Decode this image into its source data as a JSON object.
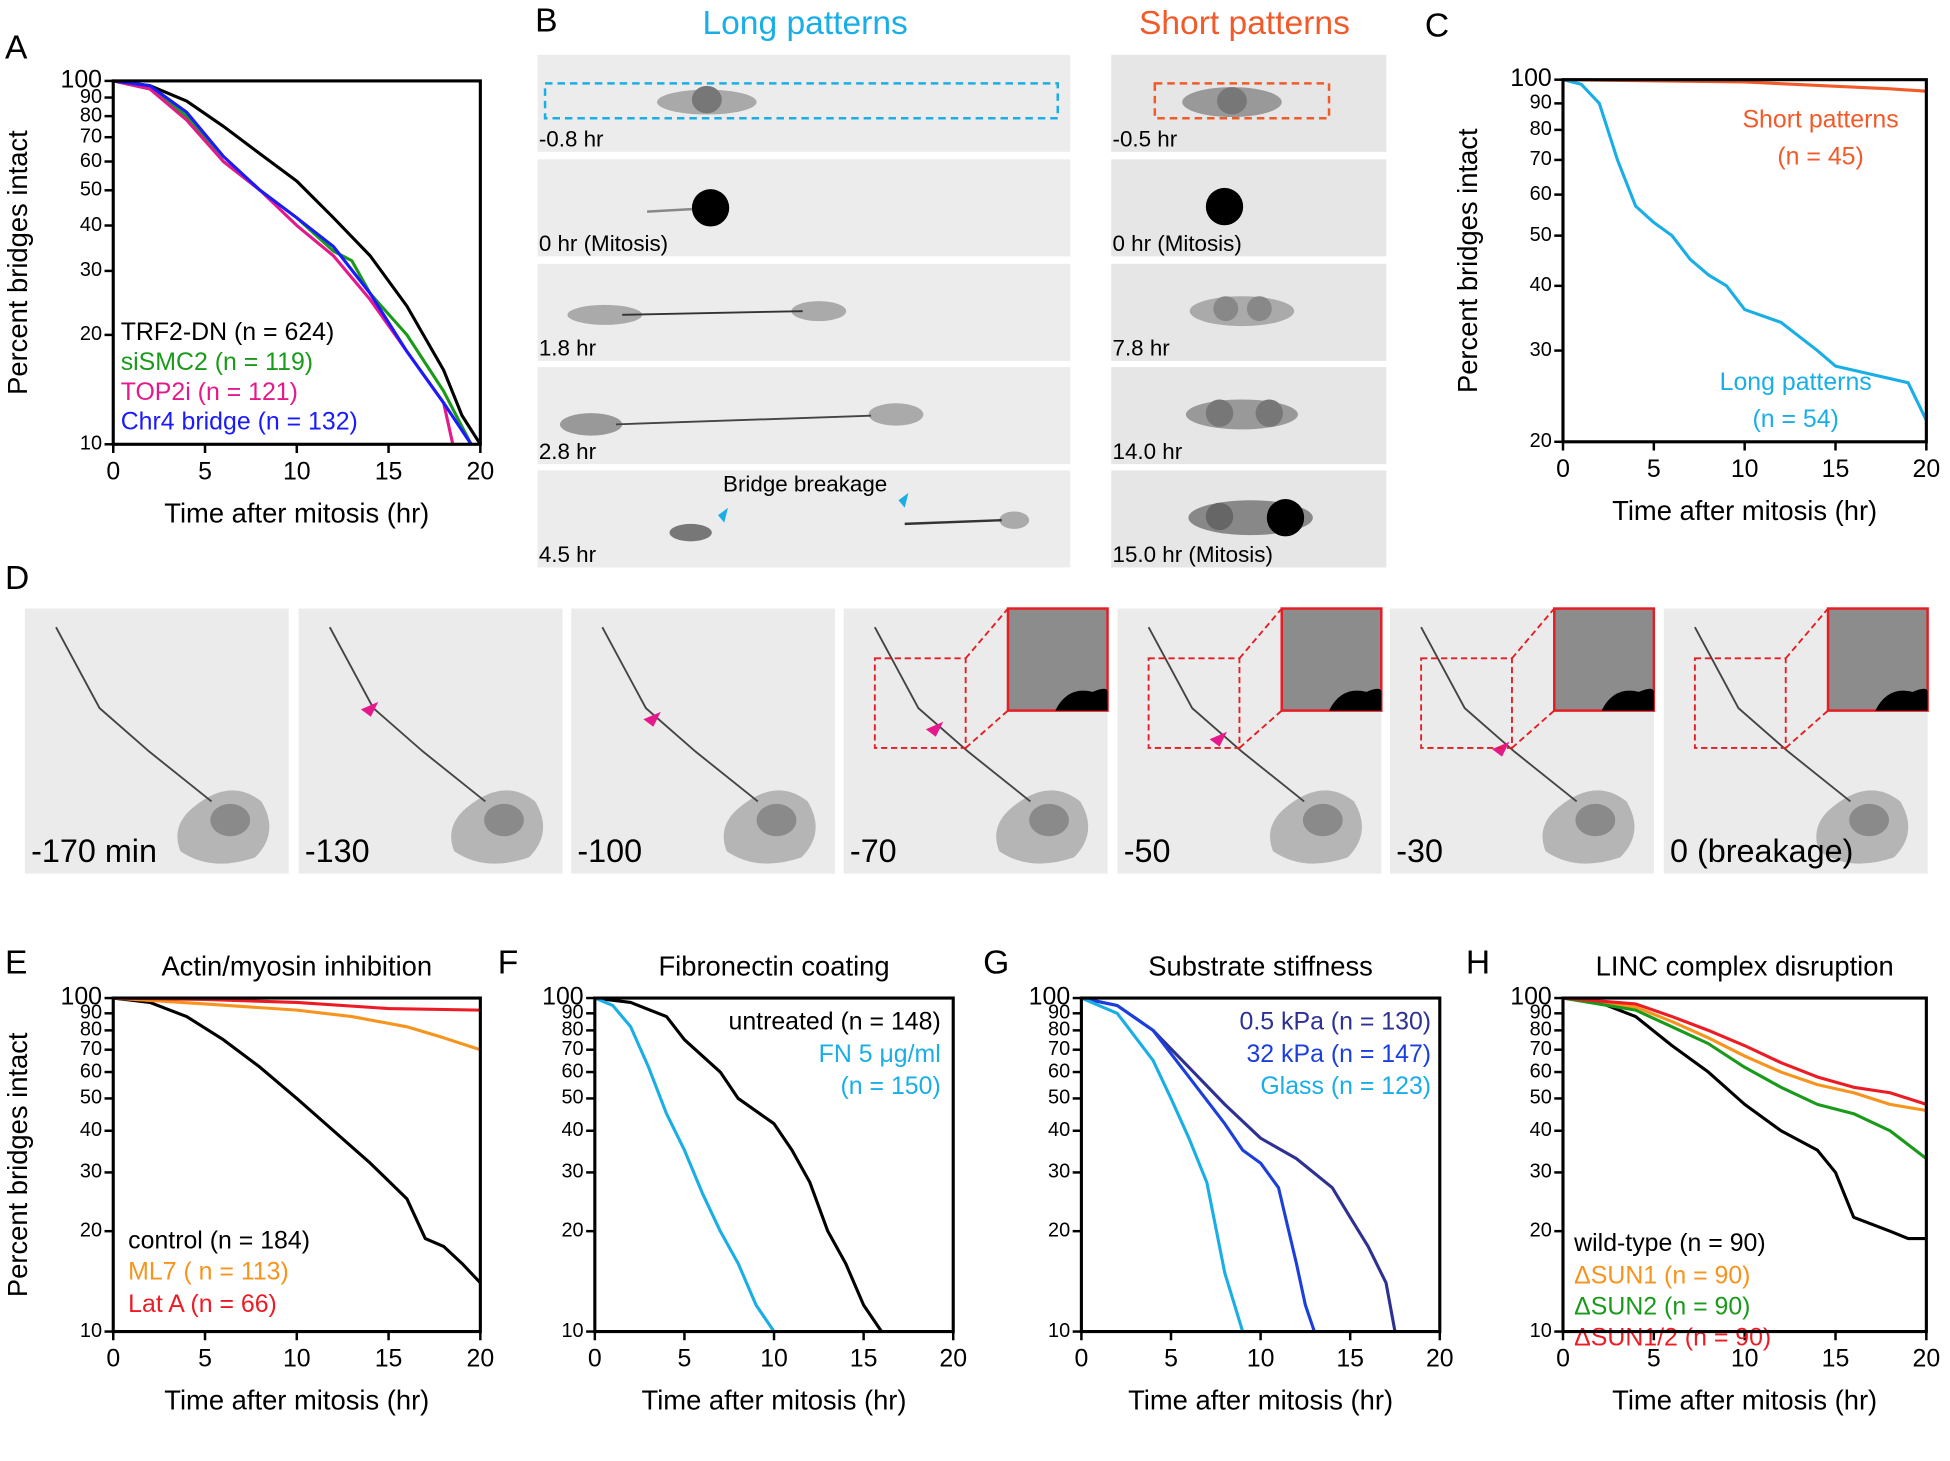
{
  "chart_data": [
    {
      "type": "line",
      "label": "A",
      "xlabel": "Time after mitosis (hr)",
      "ylabel": "Percent bridges intact",
      "xlim": [
        0,
        20
      ],
      "ylim": [
        10,
        100
      ],
      "yscale": "log",
      "xticks": [
        0,
        5,
        10,
        15,
        20
      ],
      "yticks": [
        10,
        20,
        30,
        40,
        50,
        60,
        70,
        80,
        90,
        100
      ],
      "series": [
        {
          "name": [
            "TRF2-DN (n = 624)"
          ],
          "color": "#000000",
          "x": [
            0,
            2,
            4,
            6,
            8,
            10,
            12,
            14,
            16,
            18,
            19,
            20
          ],
          "values": [
            100,
            97,
            88,
            75,
            63,
            53,
            42,
            33,
            24,
            16,
            12,
            10
          ]
        },
        {
          "name": [
            "siSMC2 (n = 119)"
          ],
          "color": "#1a9a1a",
          "x": [
            0,
            2,
            4,
            6,
            8,
            10,
            12,
            13,
            14,
            16,
            18,
            19.5
          ],
          "values": [
            100,
            95,
            80,
            60,
            50,
            42,
            34,
            32,
            26,
            20,
            14,
            10
          ]
        },
        {
          "name": [
            "TOP2i (n = 121)"
          ],
          "color": "#e6198c",
          "x": [
            0,
            2,
            4,
            6,
            8,
            10,
            12,
            14,
            16,
            18,
            18.5
          ],
          "values": [
            100,
            95,
            78,
            60,
            50,
            40,
            33,
            25,
            18,
            13,
            10
          ]
        },
        {
          "name": [
            "Chr4 bridge (n = 132)"
          ],
          "color": "#1a1aff",
          "x": [
            0,
            2,
            4,
            6,
            8,
            10,
            12,
            14,
            16,
            18,
            19.5
          ],
          "values": [
            100,
            97,
            82,
            62,
            50,
            42,
            35,
            26,
            18,
            13,
            10
          ]
        }
      ]
    },
    {
      "type": "line",
      "label": "C",
      "xlabel": "Time after mitosis (hr)",
      "ylabel": "Percent bridges intact",
      "xlim": [
        0,
        20
      ],
      "ylim": [
        20,
        100
      ],
      "yscale": "log",
      "xticks": [
        0,
        5,
        10,
        15,
        20
      ],
      "yticks": [
        20,
        30,
        40,
        50,
        60,
        70,
        80,
        90,
        100
      ],
      "series": [
        {
          "name": [
            "Short patterns",
            "(n = 45)"
          ],
          "color": "#f15a29",
          "x": [
            0,
            10,
            18,
            20
          ],
          "values": [
            100,
            99,
            96,
            95
          ]
        },
        {
          "name": [
            "Long patterns",
            "(n = 54)"
          ],
          "color": "#1aaee6",
          "x": [
            0,
            1,
            2,
            3,
            4,
            5,
            6,
            7,
            8,
            9,
            10,
            12,
            14,
            15,
            19,
            20
          ],
          "values": [
            100,
            98,
            90,
            70,
            57,
            53,
            50,
            45,
            42,
            40,
            36,
            34,
            30,
            28,
            26,
            22
          ]
        }
      ]
    },
    {
      "type": "line",
      "label": "E",
      "title": "Actin/myosin inhibition",
      "xlabel": "Time after mitosis (hr)",
      "ylabel": "Percent bridges intact",
      "xlim": [
        0,
        20
      ],
      "ylim": [
        10,
        100
      ],
      "yscale": "log",
      "xticks": [
        0,
        5,
        10,
        15,
        20
      ],
      "yticks": [
        10,
        20,
        30,
        40,
        50,
        60,
        70,
        80,
        90,
        100
      ],
      "series": [
        {
          "name": [
            "control (n = 184)"
          ],
          "color": "#000000",
          "x": [
            0,
            2,
            4,
            6,
            8,
            10,
            12,
            14,
            16,
            17,
            18,
            19,
            20
          ],
          "values": [
            100,
            97,
            88,
            75,
            62,
            50,
            40,
            32,
            25,
            19,
            18,
            16,
            14
          ]
        },
        {
          "name": [
            "ML7 ( n = 113)"
          ],
          "color": "#f7941d",
          "x": [
            0,
            5,
            10,
            13,
            16,
            18,
            20
          ],
          "values": [
            100,
            96,
            92,
            88,
            82,
            76,
            70
          ]
        },
        {
          "name": [
            "Lat A (n = 66)"
          ],
          "color": "#ed1c24",
          "x": [
            0,
            5,
            10,
            15,
            20
          ],
          "values": [
            100,
            99,
            97,
            93,
            92
          ]
        }
      ]
    },
    {
      "type": "line",
      "label": "F",
      "title": "Fibronectin coating",
      "xlabel": "Time after mitosis (hr)",
      "xlim": [
        0,
        20
      ],
      "ylim": [
        10,
        100
      ],
      "yscale": "log",
      "xticks": [
        0,
        5,
        10,
        15,
        20
      ],
      "yticks": [
        10,
        20,
        30,
        40,
        50,
        60,
        70,
        80,
        90,
        100
      ],
      "series": [
        {
          "name": [
            "untreated (n = 148)"
          ],
          "color": "#000000",
          "x": [
            0,
            2,
            4,
            5,
            7,
            8,
            10,
            11,
            12,
            13,
            14,
            15,
            16
          ],
          "values": [
            100,
            97,
            88,
            75,
            60,
            50,
            42,
            35,
            28,
            20,
            16,
            12,
            10
          ]
        },
        {
          "name": [
            "FN 5 μg/ml",
            "(n = 150)"
          ],
          "color": "#1aaee6",
          "x": [
            0,
            1,
            2,
            3,
            4,
            5,
            6,
            7,
            8,
            9,
            10
          ],
          "values": [
            100,
            95,
            82,
            62,
            45,
            35,
            26,
            20,
            16,
            12,
            10
          ]
        }
      ]
    },
    {
      "type": "line",
      "label": "G",
      "title": "Substrate stiffness",
      "xlabel": "Time after mitosis (hr)",
      "xlim": [
        0,
        20
      ],
      "ylim": [
        10,
        100
      ],
      "yscale": "log",
      "xticks": [
        0,
        5,
        10,
        15,
        20
      ],
      "yticks": [
        10,
        20,
        30,
        40,
        50,
        60,
        70,
        80,
        90,
        100
      ],
      "series": [
        {
          "name": [
            "0.5 kPa (n = 130)"
          ],
          "color": "#2e3192",
          "x": [
            0,
            2,
            4,
            6,
            8,
            10,
            12,
            14,
            15,
            16,
            17,
            17.5
          ],
          "values": [
            100,
            95,
            80,
            62,
            48,
            38,
            33,
            27,
            22,
            18,
            14,
            10
          ]
        },
        {
          "name": [
            "32 kPa (n = 147)"
          ],
          "color": "#1b3fdc",
          "x": [
            0,
            2,
            4,
            6,
            8,
            9,
            10,
            11,
            12,
            12.5,
            13
          ],
          "values": [
            100,
            95,
            80,
            58,
            42,
            35,
            32,
            27,
            16,
            12,
            10
          ]
        },
        {
          "name": [
            "Glass (n = 123)"
          ],
          "color": "#1aaee6",
          "x": [
            0,
            2,
            4,
            5,
            6,
            7,
            8,
            9
          ],
          "values": [
            100,
            90,
            65,
            50,
            38,
            28,
            15,
            10
          ]
        }
      ]
    },
    {
      "type": "line",
      "label": "H",
      "title": "LINC complex disruption",
      "xlabel": "Time after mitosis (hr)",
      "xlim": [
        0,
        20
      ],
      "ylim": [
        10,
        100
      ],
      "yscale": "log",
      "xticks": [
        0,
        5,
        10,
        15,
        20
      ],
      "yticks": [
        10,
        20,
        30,
        40,
        50,
        60,
        70,
        80,
        90,
        100
      ],
      "series": [
        {
          "name": [
            "wild-type (n = 90)"
          ],
          "color": "#000000",
          "x": [
            0,
            2,
            4,
            6,
            8,
            10,
            12,
            14,
            15,
            16,
            18,
            19,
            20
          ],
          "values": [
            100,
            97,
            88,
            72,
            60,
            48,
            40,
            35,
            30,
            22,
            20,
            19,
            19
          ]
        },
        {
          "name": [
            "ΔSUN1 (n = 90)"
          ],
          "color": "#f7941d",
          "x": [
            0,
            4,
            6,
            8,
            10,
            12,
            14,
            16,
            18,
            20
          ],
          "values": [
            100,
            94,
            85,
            76,
            67,
            60,
            55,
            52,
            48,
            46
          ]
        },
        {
          "name": [
            "ΔSUN2 (n = 90)"
          ],
          "color": "#1a9a1a",
          "x": [
            0,
            4,
            6,
            8,
            10,
            12,
            14,
            16,
            18,
            20
          ],
          "values": [
            100,
            92,
            82,
            73,
            62,
            54,
            48,
            45,
            40,
            33
          ]
        },
        {
          "name": [
            "ΔSUN1/2 (n = 90)"
          ],
          "color": "#ed1c24",
          "x": [
            0,
            4,
            6,
            8,
            10,
            12,
            14,
            16,
            18,
            20
          ],
          "values": [
            100,
            96,
            88,
            80,
            72,
            64,
            58,
            54,
            52,
            48
          ]
        }
      ]
    }
  ],
  "panel_b": {
    "label": "B",
    "long_title": "Long patterns",
    "short_title": "Short patterns",
    "long_times": [
      "-0.8 hr",
      "0 hr (Mitosis)",
      "1.8 hr",
      "2.8 hr",
      "4.5 hr"
    ],
    "short_times": [
      "-0.5 hr",
      "0 hr (Mitosis)",
      "7.8 hr",
      "14.0 hr",
      "15.0 hr (Mitosis)"
    ],
    "annotation": "Bridge breakage"
  },
  "panel_d": {
    "label": "D",
    "times": [
      "-170 min",
      "-130",
      "-100",
      "-70",
      "-50",
      "-30",
      "0 (breakage)"
    ]
  }
}
